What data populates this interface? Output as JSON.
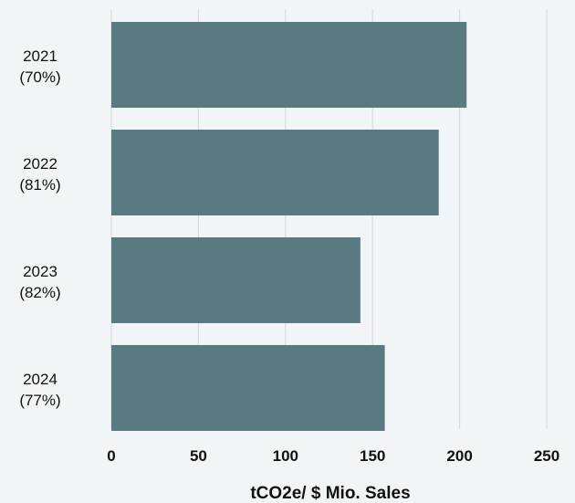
{
  "chart_data": {
    "type": "bar",
    "orientation": "horizontal",
    "categories": [
      {
        "year": "2021",
        "share": "(70%)"
      },
      {
        "year": "2022",
        "share": "(81%)"
      },
      {
        "year": "2023",
        "share": "(82%)"
      },
      {
        "year": "2024",
        "share": "(77%)"
      }
    ],
    "values": [
      204,
      188,
      143,
      157
    ],
    "xlabel": "tCO2e/ $ Mio. Sales",
    "xlim": [
      0,
      250
    ],
    "xticks": [
      0,
      50,
      100,
      150,
      200,
      250
    ],
    "grid": true,
    "colors": {
      "bar": "#587a80",
      "grid": "#d4d7d9",
      "background": "#f2f5f7"
    }
  }
}
